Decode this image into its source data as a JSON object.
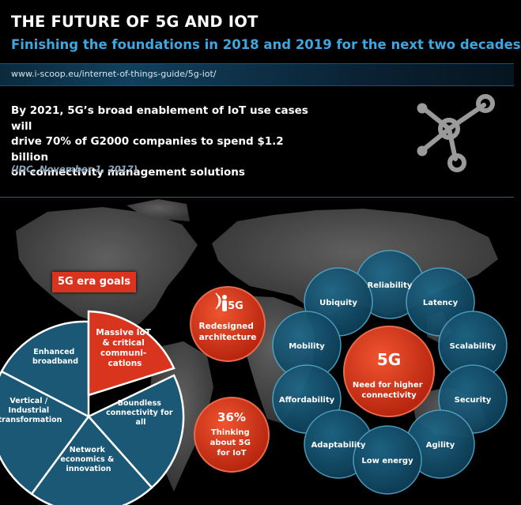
{
  "header": {
    "title": "THE FUTURE OF 5G AND IOT",
    "subtitle": "Finishing the foundations in 2018 and 2019 for the next two decades",
    "url": "www.i-scoop.eu/internet-of-things-guide/5g-iot/"
  },
  "quote": {
    "line1": "By 2021, 5G’s broad enablement of IoT use cases will",
    "line2": "drive 70% of G2000 companies to spend $1.2 billion",
    "line3": "on connectivity management solutions",
    "source": "(IDC, November 1, 2017)"
  },
  "goals": {
    "tag": "5G era goals",
    "slices": [
      {
        "lines": [
          "Massive IoT",
          "& critical",
          "communi-",
          "cations"
        ]
      },
      {
        "lines": [
          "Boundless",
          "connectivity for",
          "all"
        ]
      },
      {
        "lines": [
          "Network",
          "economics &",
          "innovation"
        ]
      },
      {
        "lines": [
          "Vertical /",
          "Industrial",
          "transformation"
        ]
      },
      {
        "lines": [
          "Enhanced",
          "broadband"
        ]
      }
    ]
  },
  "badges": {
    "arch_icon": "5G",
    "arch_line1": "Redesigned",
    "arch_line2": "architecture",
    "stat_value": "36%",
    "stat_line1": "Thinking",
    "stat_line2": "about 5G",
    "stat_line3": "for IoT"
  },
  "cluster": {
    "center_title": "5G",
    "center_line1": "Need for higher",
    "center_line2": "connectivity",
    "bubbles": [
      "Reliability",
      "Ubiquity",
      "Latency",
      "Scalability",
      "Mobility",
      "Affordability",
      "Security",
      "Adaptability",
      "Agility",
      "Low energy"
    ]
  },
  "colors": {
    "accent_red": "#d9351e",
    "accent_blue": "#3ea6e0",
    "bubble_fill": "#14516d",
    "bubble_edge": "#4fa6c9"
  },
  "icons": {
    "network": "network-nodes-icon",
    "antenna": "antenna-person-icon"
  }
}
